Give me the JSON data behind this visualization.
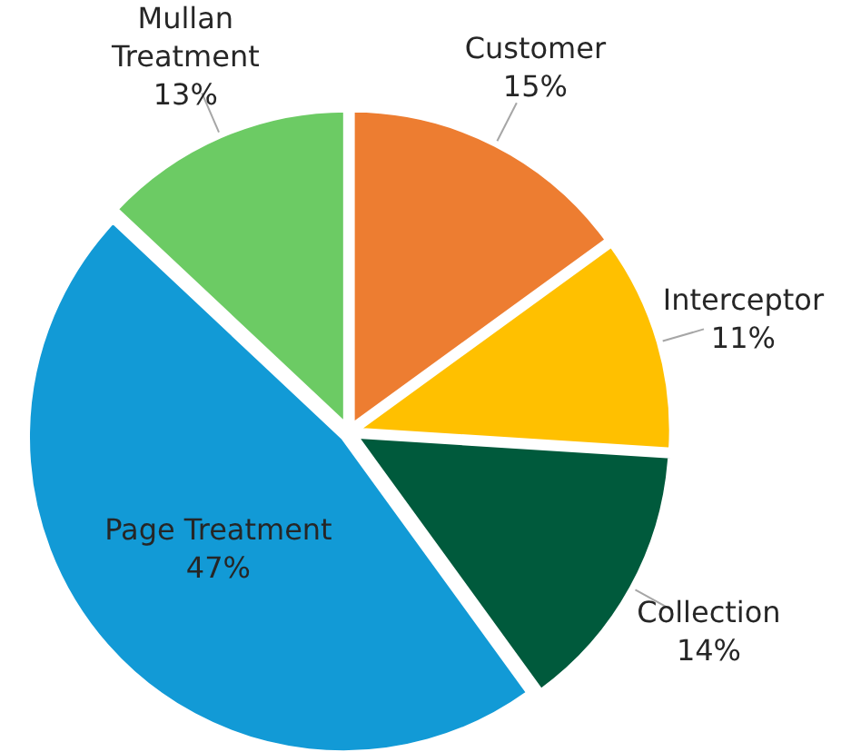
{
  "chart_data": {
    "type": "pie",
    "categories": [
      "Customer",
      "Interceptor",
      "Collection",
      "Page Treatment",
      "Mullan Treatment"
    ],
    "values": [
      15,
      11,
      14,
      47,
      13
    ],
    "value_labels": [
      "15%",
      "11%",
      "14%",
      "47%",
      "13%"
    ],
    "colors": [
      "#ed7d31",
      "#ffc000",
      "#005a3c",
      "#129ad6",
      "#6ccb64"
    ]
  }
}
